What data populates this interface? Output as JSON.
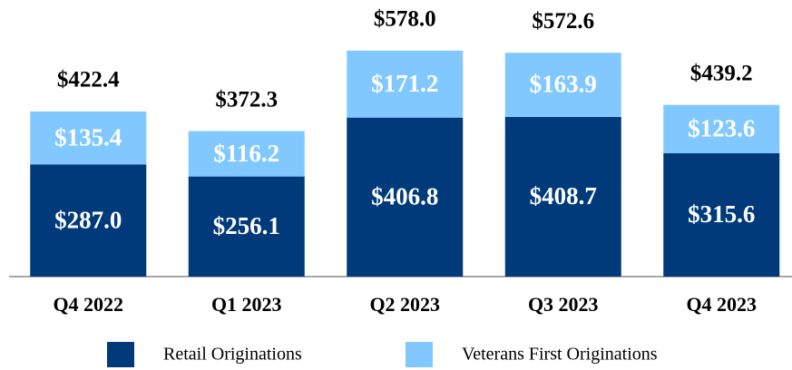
{
  "chart_data": {
    "type": "stacked_bar",
    "categories": [
      "Q4 2022",
      "Q1 2023",
      "Q2 2023",
      "Q3 2023",
      "Q4 2023"
    ],
    "series": [
      {
        "name": "Retail Originations",
        "color": "#003a7a",
        "values": [
          287.0,
          256.1,
          406.8,
          408.7,
          315.6
        ],
        "value_labels": [
          "$287.0",
          "$256.1",
          "$406.8",
          "$408.7",
          "$315.6"
        ]
      },
      {
        "name": "Veterans First Originations",
        "color": "#80c8ff",
        "values": [
          135.4,
          116.2,
          171.2,
          163.9,
          123.6
        ],
        "value_labels": [
          "$135.4",
          "$116.2",
          "$171.2",
          "$163.9",
          "$123.6"
        ]
      }
    ],
    "totals": [
      422.4,
      372.3,
      578.0,
      572.6,
      439.2
    ],
    "total_labels": [
      "$422.4",
      "$372.3",
      "$578.0",
      "$572.6",
      "$439.2"
    ]
  }
}
